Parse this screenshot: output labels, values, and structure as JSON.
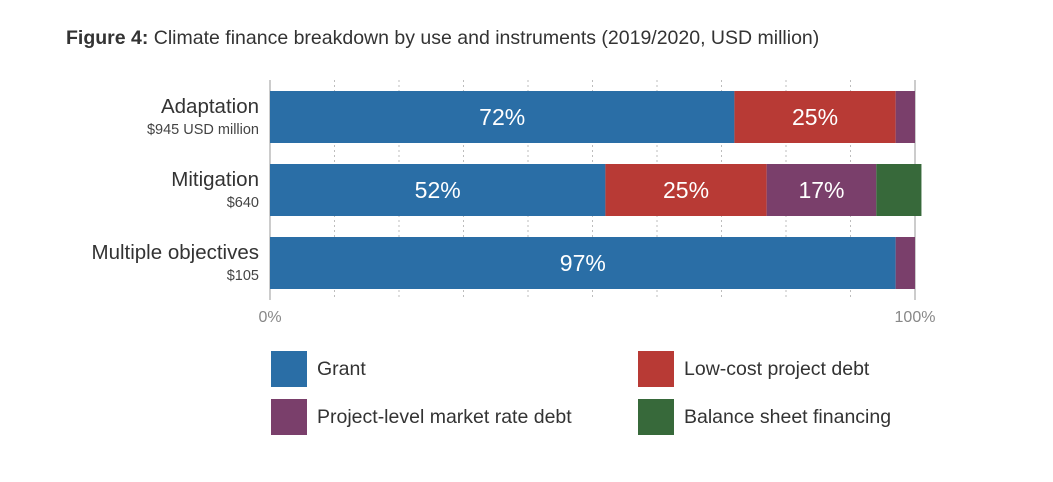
{
  "figure": {
    "label": "Figure 4:",
    "caption": "Climate finance breakdown by use and instruments (2019/2020, USD million)"
  },
  "colors": {
    "grant": "#2a6ea6",
    "low_cost_debt": "#b83a35",
    "market_rate_debt": "#7a3f6b",
    "balance_sheet": "#37693a"
  },
  "chart_data": {
    "type": "bar",
    "orientation": "horizontal",
    "stacked": true,
    "normalized": true,
    "categories": [
      {
        "name": "Adaptation",
        "amount": "$945 USD million"
      },
      {
        "name": "Mitigation",
        "amount": "$640"
      },
      {
        "name": "Multiple objectives",
        "amount": "$105"
      }
    ],
    "series": [
      {
        "name": "Grant",
        "color": "#2a6ea6",
        "values": [
          72,
          52,
          97
        ],
        "labels": [
          "72%",
          "52%",
          "97%"
        ]
      },
      {
        "name": "Low-cost project debt",
        "color": "#b83a35",
        "values": [
          25,
          25,
          0
        ],
        "labels": [
          "25%",
          "25%",
          ""
        ]
      },
      {
        "name": "Project-level market rate debt",
        "color": "#7a3f6b",
        "values": [
          3,
          17,
          3
        ],
        "labels": [
          "",
          "17%",
          ""
        ]
      },
      {
        "name": "Balance sheet financing",
        "color": "#37693a",
        "values": [
          0,
          7,
          0
        ],
        "labels": [
          "",
          "",
          ""
        ]
      }
    ],
    "xlim": [
      0,
      100
    ],
    "x_tick_labels": [
      "0%",
      "100%"
    ],
    "grid": "vertical dotted",
    "legend_position": "bottom"
  }
}
